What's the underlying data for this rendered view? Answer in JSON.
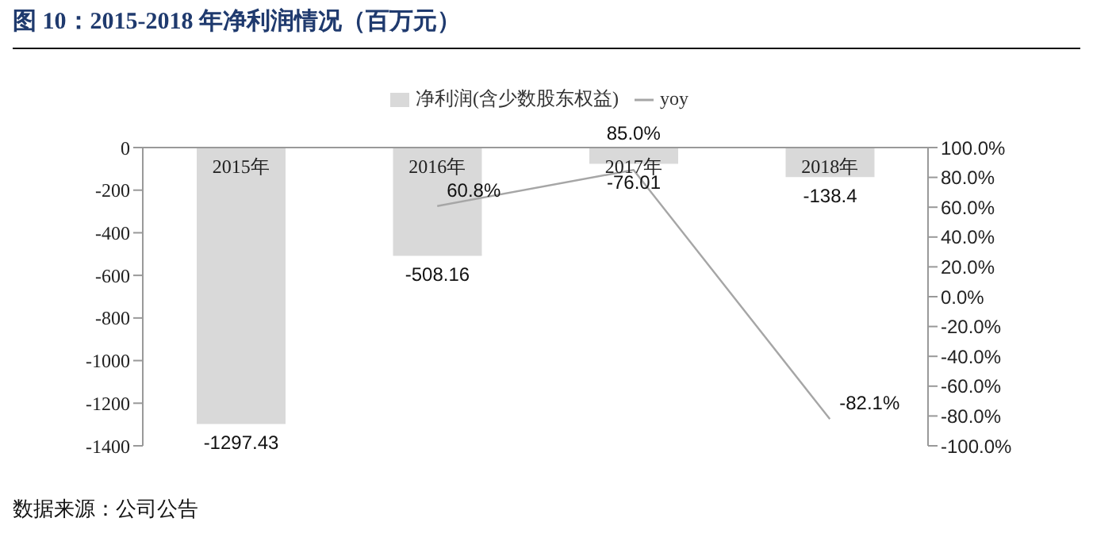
{
  "chart_data": {
    "type": "bar",
    "title": "图 10：2015-2018 年净利润情况（百万元）",
    "categories": [
      "2015年",
      "2016年",
      "2017年",
      "2018年"
    ],
    "series": [
      {
        "name": "净利润(含少数股东权益)",
        "color": "#d9d9d9",
        "values": [
          -1297.43,
          -508.16,
          -76.01,
          -138.4
        ],
        "value_labels": [
          "-1297.43",
          "-508.16",
          "-76.01",
          "-138.4"
        ]
      },
      {
        "name": "yoy",
        "type": "line",
        "axis": "y2",
        "color": "#a6a6a6",
        "values": [
          null,
          60.8,
          85.0,
          -82.1
        ],
        "value_labels": [
          null,
          "60.8%",
          "85.0%",
          "-82.1%"
        ]
      }
    ],
    "ylim": [
      -1400,
      0
    ],
    "yticks": [
      -1400,
      -1200,
      -1000,
      -800,
      -600,
      -400,
      -200,
      0
    ],
    "y2lim": [
      -100,
      100
    ],
    "y2ticks": [
      {
        "value": -100,
        "label": "-100.0%"
      },
      {
        "value": -80,
        "label": "-80.0%"
      },
      {
        "value": -60,
        "label": "-60.0%"
      },
      {
        "value": -40,
        "label": "-40.0%"
      },
      {
        "value": -20,
        "label": "-20.0%"
      },
      {
        "value": 0,
        "label": "0.0%"
      },
      {
        "value": 20,
        "label": "20.0%"
      },
      {
        "value": 40,
        "label": "40.0%"
      },
      {
        "value": 60,
        "label": "60.0%"
      },
      {
        "value": 80,
        "label": "80.0%"
      },
      {
        "value": 100,
        "label": "100.0%"
      }
    ],
    "legend": "top",
    "marker": "none",
    "annotations": [
      "数据来源：公司公告"
    ]
  }
}
